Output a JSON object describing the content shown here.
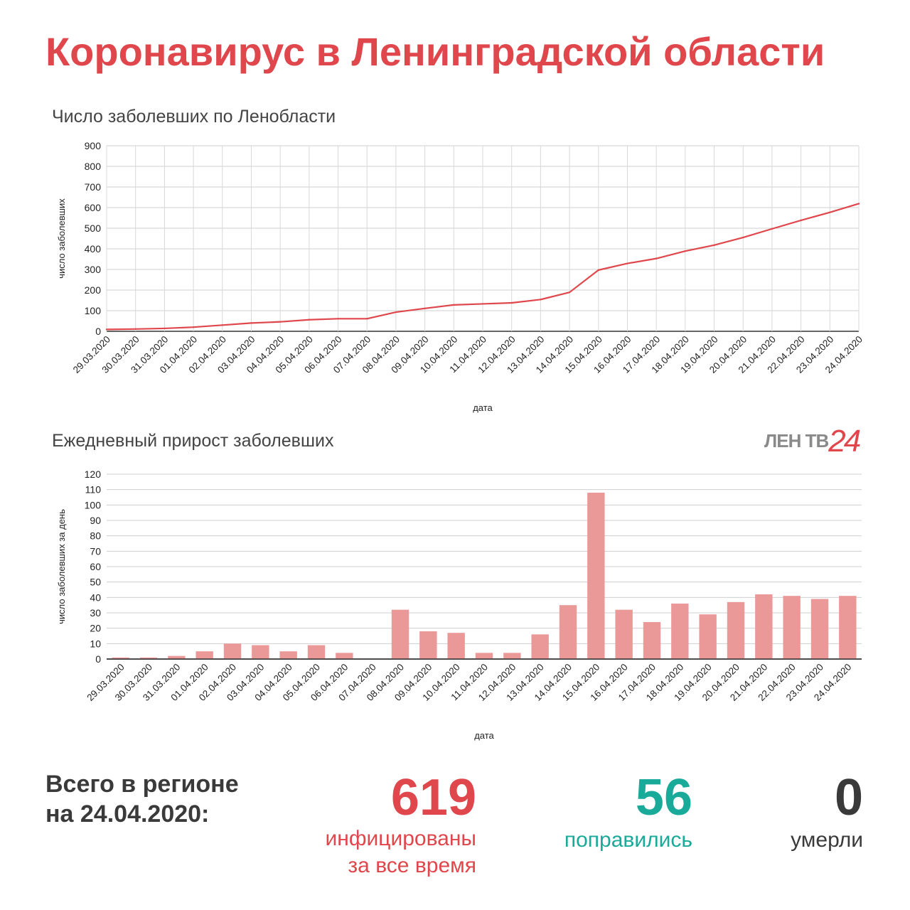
{
  "header": {
    "title": "Коронавирус в Ленинградской области"
  },
  "logo": {
    "text": "ЛЕН ТВ",
    "number": "24"
  },
  "chart_data": [
    {
      "type": "line",
      "title": "Число заболевших по Ленобласти",
      "xlabel": "дата",
      "ylabel": "число заболевших",
      "ylim": [
        0,
        900
      ],
      "yticks": [
        0,
        100,
        200,
        300,
        400,
        500,
        600,
        700,
        800,
        900
      ],
      "grid": true,
      "color": "#e0474c",
      "categories": [
        "29.03.2020",
        "30.03.2020",
        "31.03.2020",
        "01.04.2020",
        "02.04.2020",
        "03.04.2020",
        "04.04.2020",
        "05.04.2020",
        "06.04.2020",
        "07.04.2020",
        "08.04.2020",
        "09.04.2020",
        "10.04.2020",
        "11.04.2020",
        "12.04.2020",
        "13.04.2020",
        "14.04.2020",
        "15.04.2020",
        "16.04.2020",
        "17.04.2020",
        "18.04.2020",
        "19.04.2020",
        "20.04.2020",
        "21.04.2020",
        "22.04.2020",
        "23.04.2020",
        "24.04.2020"
      ],
      "values": [
        9,
        11,
        14,
        20,
        30,
        40,
        46,
        56,
        61,
        61,
        93,
        111,
        128,
        133,
        138,
        154,
        189,
        297,
        329,
        353,
        389,
        418,
        455,
        497,
        538,
        577,
        619
      ]
    },
    {
      "type": "bar",
      "title": "Ежедневный прирост заболевших",
      "xlabel": "дата",
      "ylabel": "число заболевших за день",
      "ylim": [
        0,
        120
      ],
      "yticks": [
        0,
        10,
        20,
        30,
        40,
        50,
        60,
        70,
        80,
        90,
        100,
        110,
        120
      ],
      "grid": true,
      "color": "#eb9899",
      "categories": [
        "29.03.2020",
        "30.03.2020",
        "31.03.2020",
        "01.04.2020",
        "02.04.2020",
        "03.04.2020",
        "04.04.2020",
        "05.04.2020",
        "06.04.2020",
        "07.04.2020",
        "08.04.2020",
        "09.04.2020",
        "10.04.2020",
        "11.04.2020",
        "12.04.2020",
        "13.04.2020",
        "14.04.2020",
        "15.04.2020",
        "16.04.2020",
        "17.04.2020",
        "18.04.2020",
        "19.04.2020",
        "20.04.2020",
        "21.04.2020",
        "22.04.2020",
        "23.04.2020",
        "24.04.2020"
      ],
      "values": [
        1,
        1,
        2,
        5,
        10,
        9,
        5,
        9,
        4,
        0,
        32,
        18,
        17,
        4,
        4,
        16,
        35,
        108,
        32,
        24,
        36,
        29,
        37,
        42,
        41,
        39,
        41
      ]
    }
  ],
  "summary": {
    "label_line1": "Всего в регионе",
    "label_line2": "на 24.04.2020:",
    "infected": {
      "value": "619",
      "label_line1": "инфицированы",
      "label_line2": "за все время",
      "color": "#e0474c"
    },
    "recovered": {
      "value": "56",
      "label": "поправились",
      "color": "#1aaa9a"
    },
    "deaths": {
      "value": "0",
      "label": "умерли",
      "color": "#3a3a3a"
    }
  }
}
